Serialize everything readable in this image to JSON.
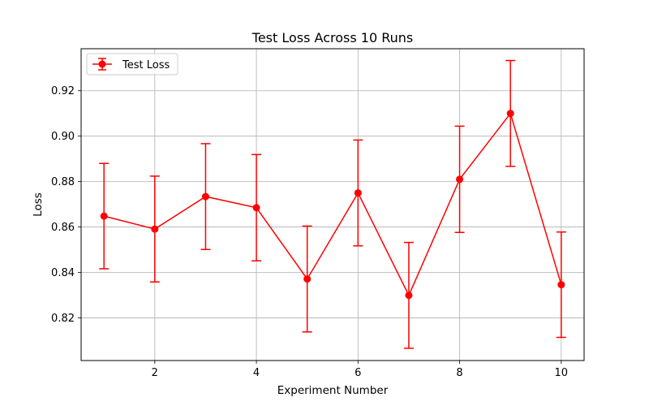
{
  "chart_data": {
    "type": "line",
    "title": "Test Loss Across 10 Runs",
    "xlabel": "Experiment Number",
    "ylabel": "Loss",
    "xlim": [
      0.55,
      10.45
    ],
    "ylim": [
      0.8012,
      0.9385
    ],
    "xticks": [
      2,
      4,
      6,
      8,
      10
    ],
    "yticks": [
      0.82,
      0.84,
      0.86,
      0.88,
      0.9,
      0.92
    ],
    "ytick_labels": [
      "0.82",
      "0.84",
      "0.86",
      "0.88",
      "0.90",
      "0.92"
    ],
    "grid": true,
    "legend_position": "top-left",
    "series": [
      {
        "name": "Test Loss",
        "color": "#ff0000",
        "marker": "circle",
        "x": [
          1,
          2,
          3,
          4,
          5,
          6,
          7,
          8,
          9,
          10
        ],
        "y": [
          0.8648,
          0.8591,
          0.8734,
          0.8685,
          0.8371,
          0.875,
          0.8299,
          0.881,
          0.91,
          0.8346
        ],
        "error": [
          0.0232,
          0.0233,
          0.0233,
          0.0234,
          0.0233,
          0.0233,
          0.0233,
          0.0234,
          0.0233,
          0.0232
        ]
      }
    ]
  }
}
